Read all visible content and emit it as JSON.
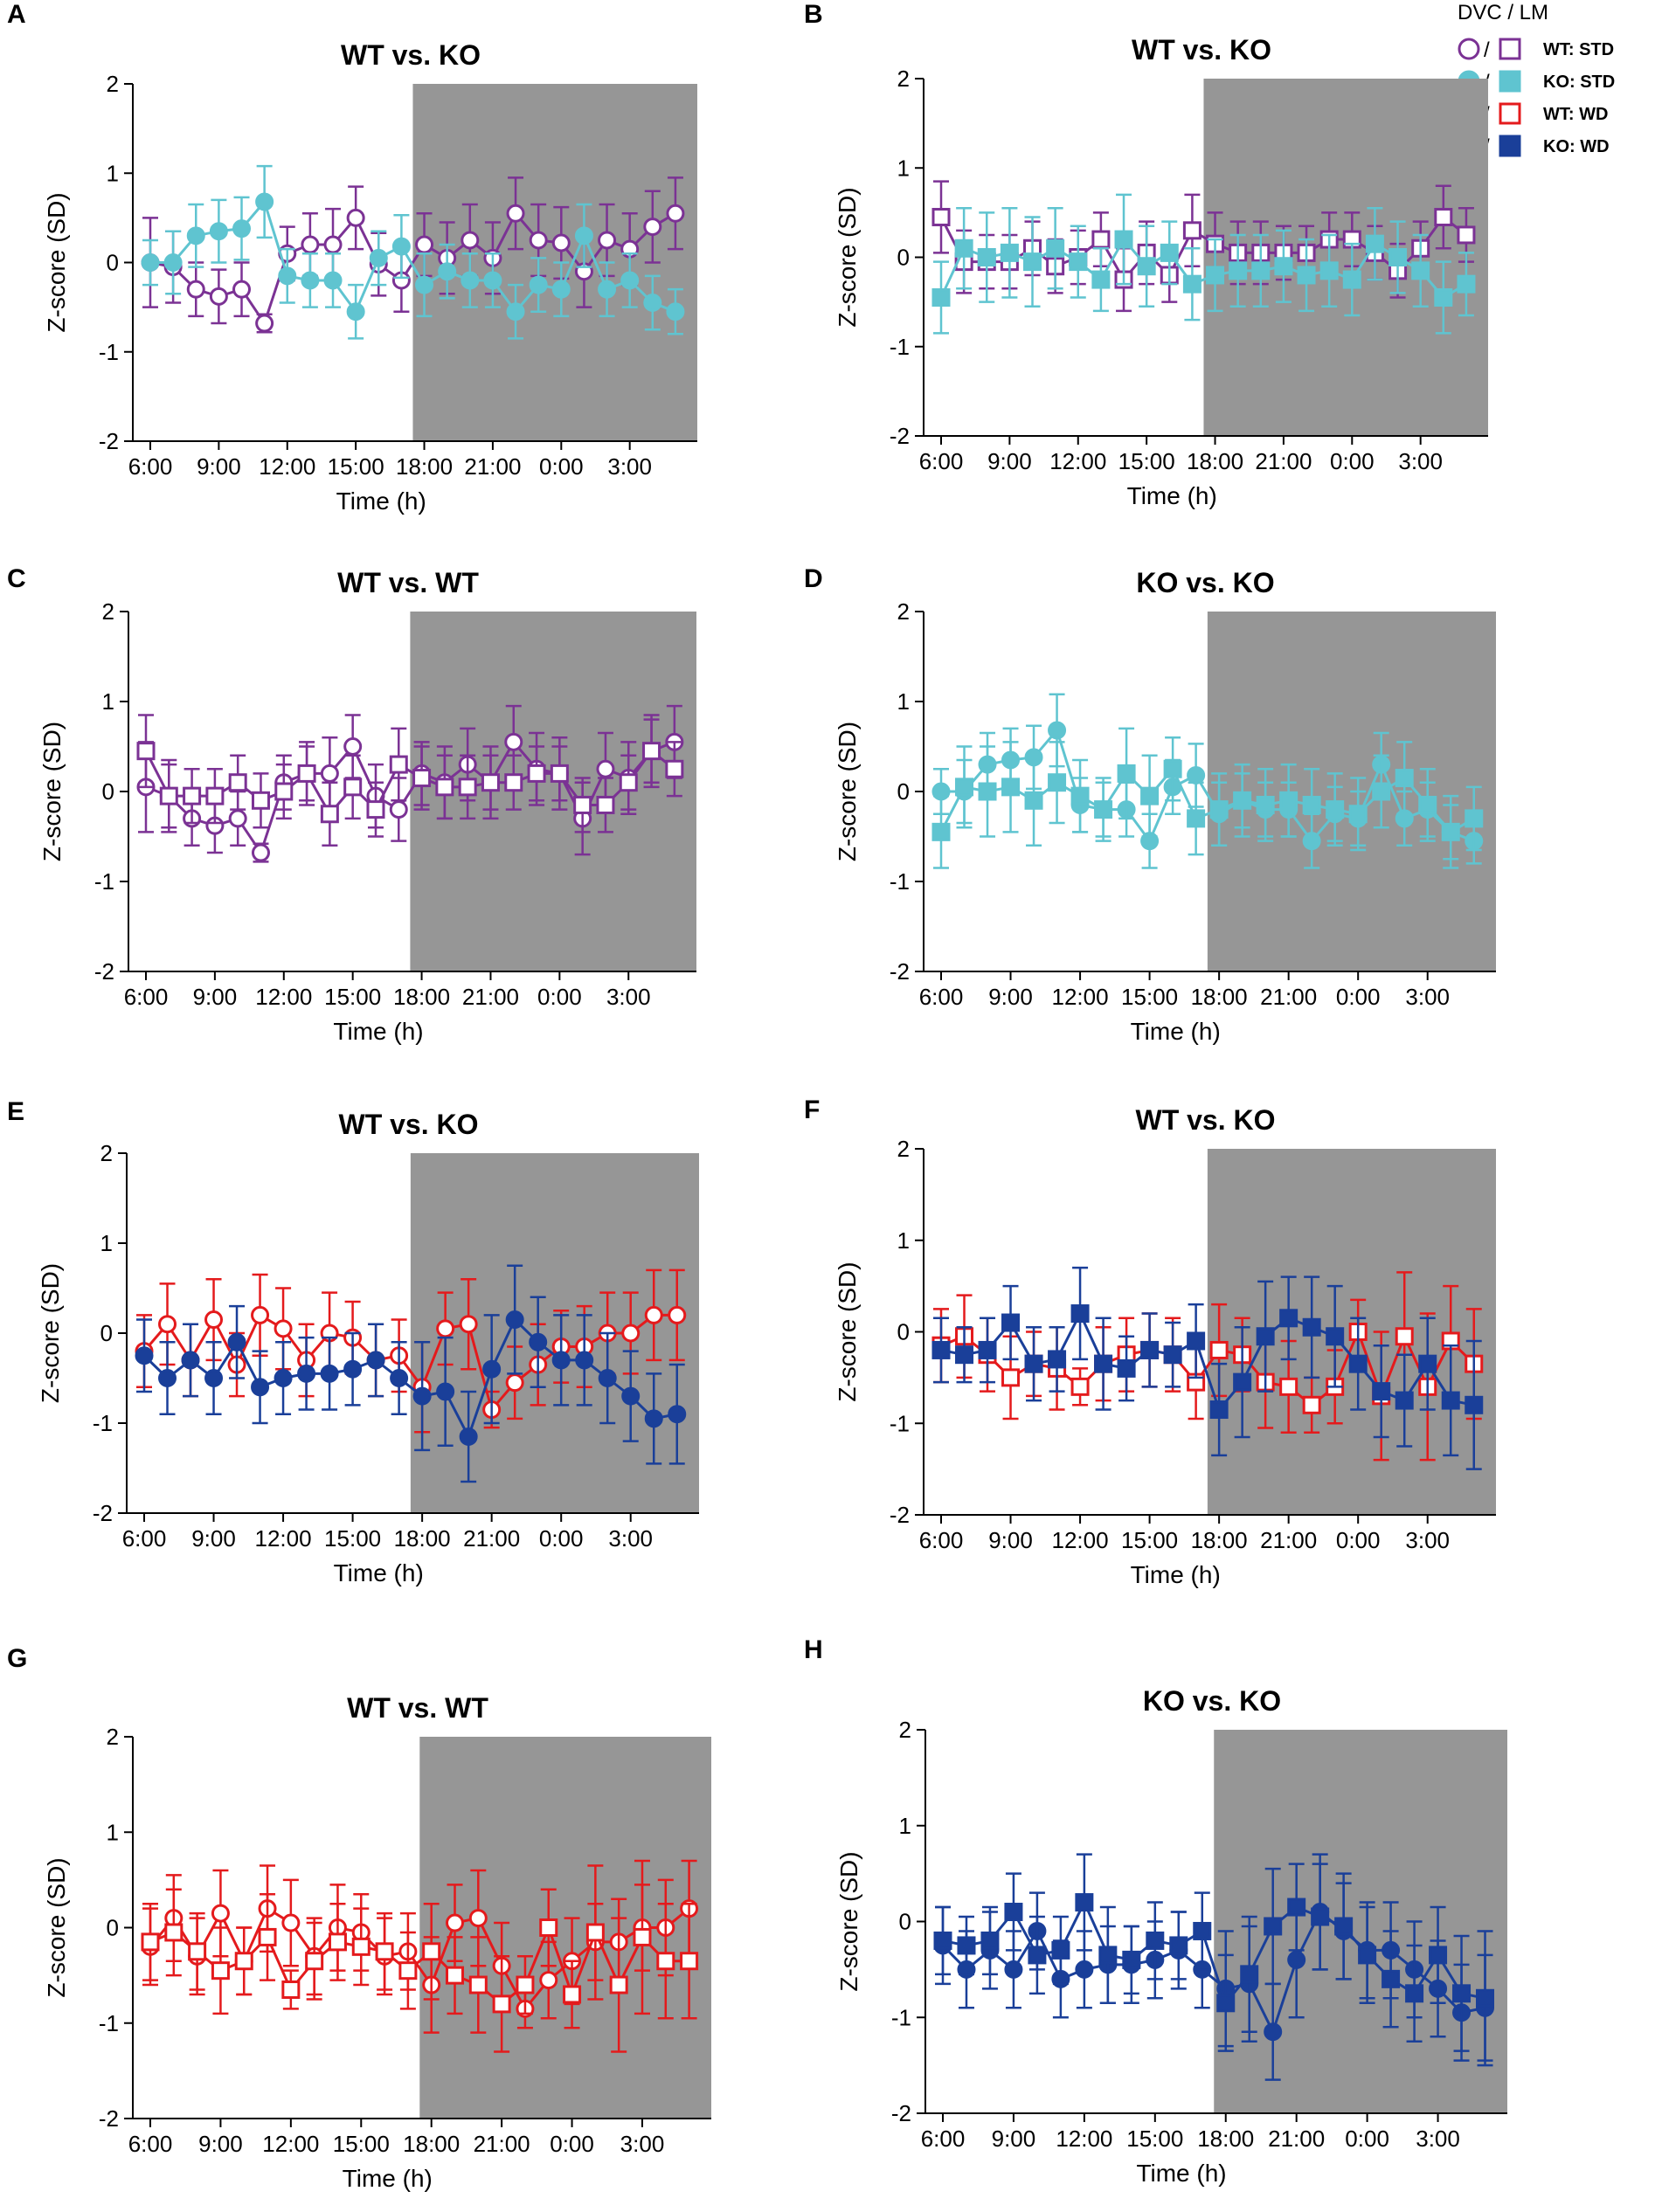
{
  "legend": {
    "header": "DVC / LM",
    "slash": "/",
    "entries": [
      {
        "label": "WT: STD",
        "color": "#7b3294",
        "filled": false
      },
      {
        "label": "KO: STD",
        "color": "#5fc4d0",
        "filled": true
      },
      {
        "label": "WT: WD",
        "color": "#e41a1c",
        "filled": false
      },
      {
        "label": "KO: WD",
        "color": "#1a3f99",
        "filled": true
      }
    ]
  },
  "common": {
    "xlabel": "Time (h)",
    "ylabel": "Z-score (SD)",
    "yticks": [
      "2",
      "1",
      "0",
      "-1",
      "-2"
    ],
    "xticks": [
      "6:00",
      "9:00",
      "12:00",
      "15:00",
      "18:00",
      "21:00",
      "0:00",
      "3:00"
    ],
    "ylim": [
      -2,
      2
    ],
    "dark_phase_color": "#969696"
  },
  "chart_data": [
    {
      "panel": "A",
      "type": "line",
      "title": "WT vs. KO",
      "series": [
        {
          "name": "WT: STD DVC",
          "color": "#7b3294",
          "marker": "circle",
          "filled": false,
          "values": [
            0.0,
            -0.05,
            -0.3,
            -0.38,
            -0.3,
            -0.68,
            0.1,
            0.2,
            0.2,
            0.5,
            -0.02,
            -0.2,
            0.2,
            0.05,
            0.25,
            0.05,
            0.55,
            0.25,
            0.22,
            -0.1,
            0.25,
            0.15,
            0.4,
            0.55
          ],
          "err": [
            0.5,
            0.4,
            0.3,
            0.3,
            0.3,
            0.1,
            0.3,
            0.35,
            0.4,
            0.35,
            0.35,
            0.35,
            0.35,
            0.4,
            0.4,
            0.4,
            0.4,
            0.4,
            0.4,
            0.4,
            0.4,
            0.4,
            0.4,
            0.4
          ]
        },
        {
          "name": "KO: STD DVC",
          "color": "#5fc4d0",
          "marker": "circle",
          "filled": true,
          "values": [
            0.0,
            0.0,
            0.3,
            0.35,
            0.38,
            0.68,
            -0.15,
            -0.2,
            -0.2,
            -0.55,
            0.05,
            0.18,
            -0.25,
            -0.1,
            -0.2,
            -0.2,
            -0.55,
            -0.25,
            -0.3,
            0.3,
            -0.3,
            -0.2,
            -0.45,
            -0.55
          ],
          "err": [
            0.25,
            0.35,
            0.35,
            0.35,
            0.35,
            0.4,
            0.3,
            0.3,
            0.3,
            0.3,
            0.3,
            0.35,
            0.35,
            0.3,
            0.3,
            0.3,
            0.3,
            0.3,
            0.3,
            0.35,
            0.3,
            0.3,
            0.3,
            0.25
          ]
        }
      ]
    },
    {
      "panel": "B",
      "type": "line",
      "title": "WT vs. KO",
      "series": [
        {
          "name": "WT: STD LM",
          "color": "#7b3294",
          "marker": "square",
          "filled": false,
          "values": [
            0.45,
            -0.05,
            -0.05,
            -0.05,
            0.1,
            -0.1,
            0.0,
            0.2,
            -0.25,
            0.05,
            -0.2,
            0.3,
            0.15,
            0.05,
            0.05,
            0.05,
            0.05,
            0.2,
            0.2,
            0.05,
            -0.15,
            0.1,
            0.45,
            0.25
          ],
          "err": [
            0.4,
            0.35,
            0.3,
            0.3,
            0.3,
            0.3,
            0.3,
            0.3,
            0.35,
            0.35,
            0.3,
            0.4,
            0.35,
            0.35,
            0.35,
            0.3,
            0.3,
            0.3,
            0.3,
            0.3,
            0.3,
            0.3,
            0.35,
            0.3
          ]
        },
        {
          "name": "KO: STD LM",
          "color": "#5fc4d0",
          "marker": "square",
          "filled": true,
          "values": [
            -0.45,
            0.1,
            0.0,
            0.05,
            -0.05,
            0.1,
            -0.05,
            -0.25,
            0.2,
            -0.1,
            0.05,
            -0.3,
            -0.2,
            -0.15,
            -0.15,
            -0.1,
            -0.2,
            -0.15,
            -0.25,
            0.15,
            0.0,
            -0.15,
            -0.45,
            -0.3
          ],
          "err": [
            0.4,
            0.45,
            0.5,
            0.5,
            0.5,
            0.45,
            0.4,
            0.35,
            0.5,
            0.45,
            0.35,
            0.4,
            0.4,
            0.4,
            0.4,
            0.4,
            0.4,
            0.4,
            0.4,
            0.4,
            0.4,
            0.4,
            0.4,
            0.35
          ]
        }
      ]
    },
    {
      "panel": "C",
      "type": "line",
      "title": "WT vs. WT",
      "series": [
        {
          "name": "WT: STD DVC",
          "color": "#7b3294",
          "marker": "circle",
          "filled": false,
          "values": [
            0.05,
            -0.05,
            -0.3,
            -0.38,
            -0.3,
            -0.68,
            0.1,
            0.2,
            0.2,
            0.5,
            -0.05,
            -0.2,
            0.2,
            0.1,
            0.3,
            0.1,
            0.55,
            0.25,
            0.2,
            -0.3,
            0.25,
            0.15,
            0.45,
            0.55
          ],
          "err": [
            0.5,
            0.4,
            0.3,
            0.3,
            0.3,
            0.1,
            0.3,
            0.35,
            0.4,
            0.35,
            0.35,
            0.35,
            0.35,
            0.4,
            0.4,
            0.4,
            0.4,
            0.4,
            0.4,
            0.4,
            0.4,
            0.4,
            0.4,
            0.4
          ]
        },
        {
          "name": "WT: STD LM",
          "color": "#7b3294",
          "marker": "square",
          "filled": false,
          "values": [
            0.45,
            -0.05,
            -0.05,
            -0.05,
            0.1,
            -0.1,
            0.0,
            0.2,
            -0.25,
            0.05,
            -0.2,
            0.3,
            0.15,
            0.05,
            0.05,
            0.1,
            0.1,
            0.2,
            0.2,
            -0.15,
            -0.15,
            0.1,
            0.45,
            0.25
          ],
          "err": [
            0.4,
            0.35,
            0.3,
            0.3,
            0.3,
            0.3,
            0.3,
            0.3,
            0.35,
            0.35,
            0.3,
            0.4,
            0.35,
            0.35,
            0.35,
            0.3,
            0.3,
            0.3,
            0.3,
            0.3,
            0.3,
            0.3,
            0.35,
            0.3
          ]
        }
      ]
    },
    {
      "panel": "D",
      "type": "line",
      "title": "KO vs. KO",
      "series": [
        {
          "name": "KO: STD DVC",
          "color": "#5fc4d0",
          "marker": "circle",
          "filled": true,
          "values": [
            0.0,
            0.0,
            0.3,
            0.35,
            0.38,
            0.68,
            -0.15,
            -0.2,
            -0.2,
            -0.55,
            0.05,
            0.18,
            -0.25,
            -0.1,
            -0.2,
            -0.2,
            -0.55,
            -0.25,
            -0.3,
            0.3,
            -0.3,
            -0.2,
            -0.45,
            -0.55
          ],
          "err": [
            0.25,
            0.35,
            0.35,
            0.35,
            0.35,
            0.4,
            0.3,
            0.3,
            0.3,
            0.3,
            0.3,
            0.35,
            0.35,
            0.3,
            0.3,
            0.3,
            0.3,
            0.3,
            0.3,
            0.35,
            0.3,
            0.3,
            0.3,
            0.25
          ]
        },
        {
          "name": "KO: STD LM",
          "color": "#5fc4d0",
          "marker": "square",
          "filled": true,
          "values": [
            -0.45,
            0.05,
            0.0,
            0.05,
            -0.1,
            0.1,
            -0.05,
            -0.2,
            0.2,
            -0.05,
            0.25,
            -0.3,
            -0.2,
            -0.1,
            -0.15,
            -0.1,
            -0.15,
            -0.2,
            -0.25,
            0.0,
            0.15,
            -0.15,
            -0.45,
            -0.3
          ],
          "err": [
            0.4,
            0.45,
            0.5,
            0.5,
            0.5,
            0.45,
            0.4,
            0.35,
            0.5,
            0.45,
            0.35,
            0.4,
            0.4,
            0.4,
            0.4,
            0.4,
            0.4,
            0.4,
            0.4,
            0.4,
            0.4,
            0.4,
            0.4,
            0.35
          ]
        }
      ]
    },
    {
      "panel": "E",
      "type": "line",
      "title": "WT vs. KO",
      "series": [
        {
          "name": "WT: WD DVC",
          "color": "#e41a1c",
          "marker": "circle",
          "filled": false,
          "values": [
            -0.2,
            0.1,
            -0.3,
            0.15,
            -0.35,
            0.2,
            0.05,
            -0.3,
            0.0,
            -0.05,
            -0.3,
            -0.25,
            -0.6,
            0.05,
            0.1,
            -0.85,
            -0.55,
            -0.35,
            -0.15,
            -0.15,
            0.0,
            0.0,
            0.2,
            0.2
          ],
          "err": [
            0.4,
            0.45,
            0.4,
            0.45,
            0.35,
            0.45,
            0.45,
            0.4,
            0.45,
            0.4,
            0.4,
            0.4,
            0.5,
            0.4,
            0.5,
            0.2,
            0.4,
            0.45,
            0.4,
            0.45,
            0.45,
            0.45,
            0.5,
            0.5
          ]
        },
        {
          "name": "KO: WD DVC",
          "color": "#1a3f99",
          "marker": "circle",
          "filled": true,
          "values": [
            -0.25,
            -0.5,
            -0.3,
            -0.5,
            -0.1,
            -0.6,
            -0.5,
            -0.45,
            -0.45,
            -0.4,
            -0.3,
            -0.5,
            -0.7,
            -0.65,
            -1.15,
            -0.4,
            0.15,
            -0.1,
            -0.3,
            -0.3,
            -0.5,
            -0.7,
            -0.95,
            -0.9
          ],
          "err": [
            0.4,
            0.4,
            0.4,
            0.4,
            0.4,
            0.4,
            0.4,
            0.4,
            0.4,
            0.4,
            0.4,
            0.4,
            0.6,
            0.6,
            0.5,
            0.6,
            0.6,
            0.5,
            0.5,
            0.5,
            0.5,
            0.5,
            0.5,
            0.55
          ]
        }
      ]
    },
    {
      "panel": "F",
      "type": "line",
      "title": "WT vs. KO",
      "series": [
        {
          "name": "WT: WD LM",
          "color": "#e41a1c",
          "marker": "square",
          "filled": false,
          "values": [
            -0.15,
            -0.05,
            -0.25,
            -0.5,
            -0.35,
            -0.4,
            -0.6,
            -0.35,
            -0.25,
            -0.2,
            -0.25,
            -0.55,
            -0.2,
            -0.25,
            -0.55,
            -0.6,
            -0.8,
            -0.6,
            0.0,
            -0.7,
            -0.05,
            -0.6,
            -0.1,
            -0.35
          ],
          "err": [
            0.4,
            0.45,
            0.4,
            0.45,
            0.35,
            0.45,
            0.2,
            0.4,
            0.4,
            0.4,
            0.4,
            0.4,
            0.5,
            0.4,
            0.5,
            0.5,
            0.3,
            0.4,
            0.35,
            0.7,
            0.7,
            0.8,
            0.6,
            0.6
          ]
        },
        {
          "name": "KO: WD LM",
          "color": "#1a3f99",
          "marker": "square",
          "filled": true,
          "values": [
            -0.2,
            -0.25,
            -0.2,
            0.1,
            -0.35,
            -0.3,
            0.2,
            -0.35,
            -0.4,
            -0.2,
            -0.25,
            -0.1,
            -0.85,
            -0.55,
            -0.05,
            0.15,
            0.05,
            -0.05,
            -0.35,
            -0.65,
            -0.75,
            -0.35,
            -0.75,
            -0.8
          ],
          "err": [
            0.35,
            0.3,
            0.35,
            0.4,
            0.4,
            0.35,
            0.5,
            0.5,
            0.35,
            0.4,
            0.35,
            0.4,
            0.5,
            0.6,
            0.6,
            0.45,
            0.55,
            0.55,
            0.5,
            0.5,
            0.5,
            0.5,
            0.6,
            0.7
          ]
        }
      ]
    },
    {
      "panel": "G",
      "type": "line",
      "title": "WT vs. WT",
      "series": [
        {
          "name": "WT: WD DVC",
          "color": "#e41a1c",
          "marker": "circle",
          "filled": false,
          "values": [
            -0.2,
            0.1,
            -0.3,
            0.15,
            -0.35,
            0.2,
            0.05,
            -0.3,
            0.0,
            -0.05,
            -0.3,
            -0.25,
            -0.6,
            0.05,
            0.1,
            -0.4,
            -0.85,
            -0.55,
            -0.35,
            -0.15,
            -0.15,
            0.0,
            0.0,
            0.2
          ],
          "err": [
            0.4,
            0.45,
            0.4,
            0.45,
            0.35,
            0.45,
            0.45,
            0.4,
            0.45,
            0.4,
            0.4,
            0.4,
            0.5,
            0.4,
            0.5,
            0.45,
            0.2,
            0.4,
            0.45,
            0.4,
            0.45,
            0.45,
            0.5,
            0.5
          ]
        },
        {
          "name": "WT: WD LM",
          "color": "#e41a1c",
          "marker": "square",
          "filled": false,
          "values": [
            -0.15,
            -0.05,
            -0.25,
            -0.45,
            -0.35,
            -0.1,
            -0.65,
            -0.35,
            -0.15,
            -0.2,
            -0.25,
            -0.45,
            -0.25,
            -0.5,
            -0.6,
            -0.8,
            -0.6,
            0.0,
            -0.7,
            -0.05,
            -0.6,
            -0.1,
            -0.35,
            -0.35
          ],
          "err": [
            0.4,
            0.45,
            0.4,
            0.45,
            0.35,
            0.45,
            0.2,
            0.4,
            0.4,
            0.4,
            0.4,
            0.4,
            0.5,
            0.4,
            0.5,
            0.5,
            0.3,
            0.4,
            0.35,
            0.7,
            0.7,
            0.8,
            0.6,
            0.6
          ]
        }
      ]
    },
    {
      "panel": "H",
      "type": "line",
      "title": "KO vs. KO",
      "series": [
        {
          "name": "KO: WD DVC",
          "color": "#1a3f99",
          "marker": "circle",
          "filled": true,
          "values": [
            -0.25,
            -0.5,
            -0.3,
            -0.5,
            -0.1,
            -0.6,
            -0.5,
            -0.45,
            -0.45,
            -0.4,
            -0.3,
            -0.5,
            -0.7,
            -0.65,
            -1.15,
            -0.4,
            0.1,
            -0.1,
            -0.3,
            -0.3,
            -0.5,
            -0.7,
            -0.95,
            -0.9
          ],
          "err": [
            0.4,
            0.4,
            0.4,
            0.4,
            0.4,
            0.4,
            0.4,
            0.4,
            0.4,
            0.4,
            0.4,
            0.4,
            0.6,
            0.6,
            0.5,
            0.6,
            0.6,
            0.5,
            0.5,
            0.5,
            0.5,
            0.5,
            0.5,
            0.55
          ]
        },
        {
          "name": "KO: WD LM",
          "color": "#1a3f99",
          "marker": "square",
          "filled": true,
          "values": [
            -0.2,
            -0.25,
            -0.2,
            0.1,
            -0.35,
            -0.3,
            0.2,
            -0.35,
            -0.4,
            -0.2,
            -0.25,
            -0.1,
            -0.85,
            -0.55,
            -0.05,
            0.15,
            0.05,
            -0.05,
            -0.35,
            -0.6,
            -0.75,
            -0.35,
            -0.75,
            -0.8
          ],
          "err": [
            0.35,
            0.3,
            0.35,
            0.4,
            0.4,
            0.35,
            0.5,
            0.5,
            0.35,
            0.4,
            0.35,
            0.4,
            0.5,
            0.6,
            0.6,
            0.45,
            0.55,
            0.55,
            0.5,
            0.5,
            0.5,
            0.5,
            0.6,
            0.7
          ]
        }
      ]
    }
  ]
}
